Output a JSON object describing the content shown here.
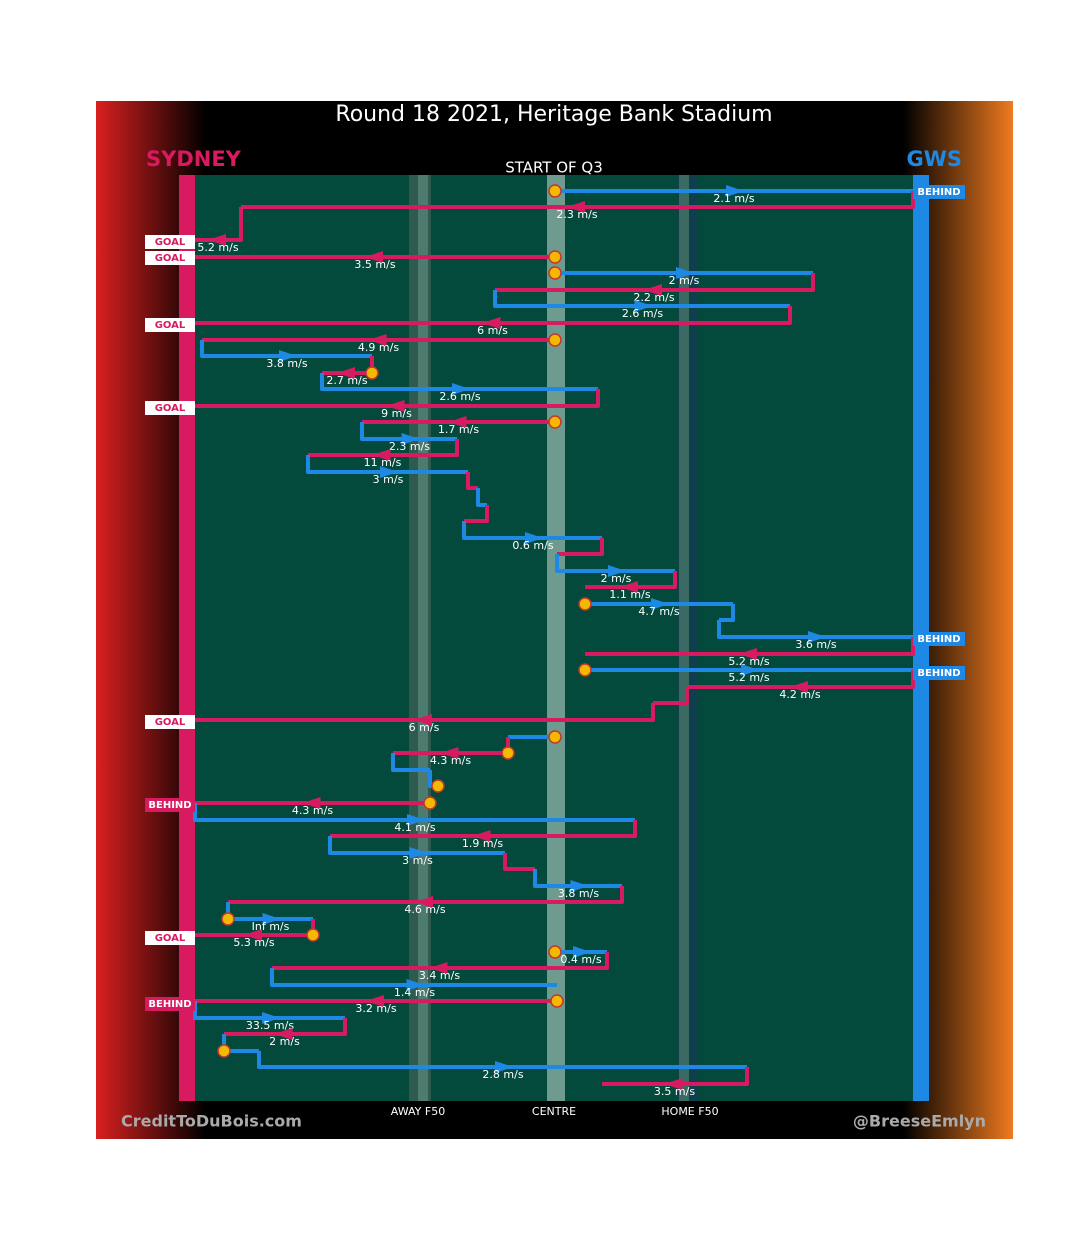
{
  "header": {
    "title": "Round 18 2021, Heritage Bank Stadium",
    "home_team": "SYDNEY",
    "away_team": "GWS",
    "subtitle": "START OF Q3"
  },
  "zone_labels": [
    "AWAY F50",
    "CENTRE",
    "HOME F50"
  ],
  "credits": {
    "left": "CreditToDuBois.com",
    "right": "@BreeseEmlyn"
  },
  "speeds": [
    "2.1 m/s",
    "2.3 m/s",
    "5.2 m/s",
    "3.5 m/s",
    "2 m/s",
    "2.2 m/s",
    "2.6 m/s",
    "6 m/s",
    "4.9 m/s",
    "3.8 m/s",
    "2.7 m/s",
    "2.6 m/s",
    "9 m/s",
    "1.7 m/s",
    "2.3 m/s",
    "11 m/s",
    "3 m/s",
    "0.6 m/s",
    "2 m/s",
    "1.1 m/s",
    "4.7 m/s",
    "3.6 m/s",
    "5.2 m/s",
    "5.2 m/s",
    "4.2 m/s",
    "6 m/s",
    "4.3 m/s",
    "4.3 m/s",
    "4.1 m/s",
    "1.9 m/s",
    "3 m/s",
    "3.8 m/s",
    "4.6 m/s",
    "Inf m/s",
    "5.3 m/s",
    "0.4 m/s",
    "3.4 m/s",
    "1.4 m/s",
    "3.2 m/s",
    "33.5 m/s",
    "2 m/s",
    "2.8 m/s",
    "3.5 m/s"
  ],
  "outcomes": [
    "BEHIND",
    "GOAL",
    "GOAL",
    "GOAL",
    "GOAL",
    "BEHIND",
    "BEHIND",
    "GOAL",
    "BEHIND",
    "GOAL",
    "BEHIND"
  ]
}
